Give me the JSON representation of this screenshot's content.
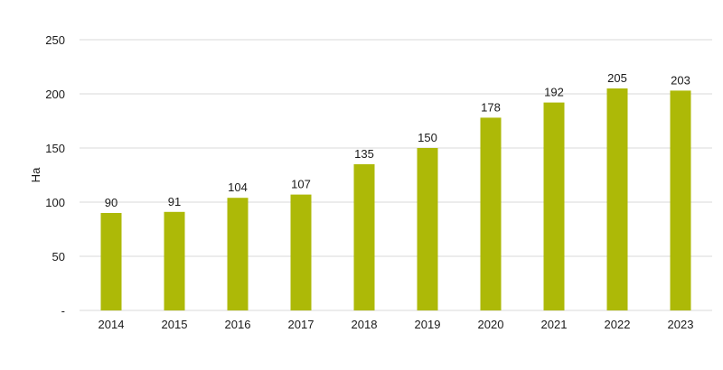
{
  "chart_data": {
    "type": "bar",
    "categories": [
      "2014",
      "2015",
      "2016",
      "2017",
      "2018",
      "2019",
      "2020",
      "2021",
      "2022",
      "2023"
    ],
    "values": [
      90,
      91,
      104,
      107,
      135,
      150,
      178,
      192,
      205,
      203
    ],
    "data_labels": [
      "90",
      "91",
      "104",
      "107",
      "135",
      "150",
      "178",
      "192",
      "205",
      "203"
    ],
    "ylabel": "Ha",
    "xlabel": "",
    "title": "",
    "ylim": [
      0,
      250
    ],
    "yticks": [
      0,
      50,
      100,
      150,
      200,
      250
    ],
    "ytick_labels": [
      "-",
      "50",
      "100",
      "150",
      "200",
      "250"
    ],
    "grid": true,
    "legend": "none",
    "bar_color": "#adb907",
    "grid_color": "#d9d9d9"
  }
}
